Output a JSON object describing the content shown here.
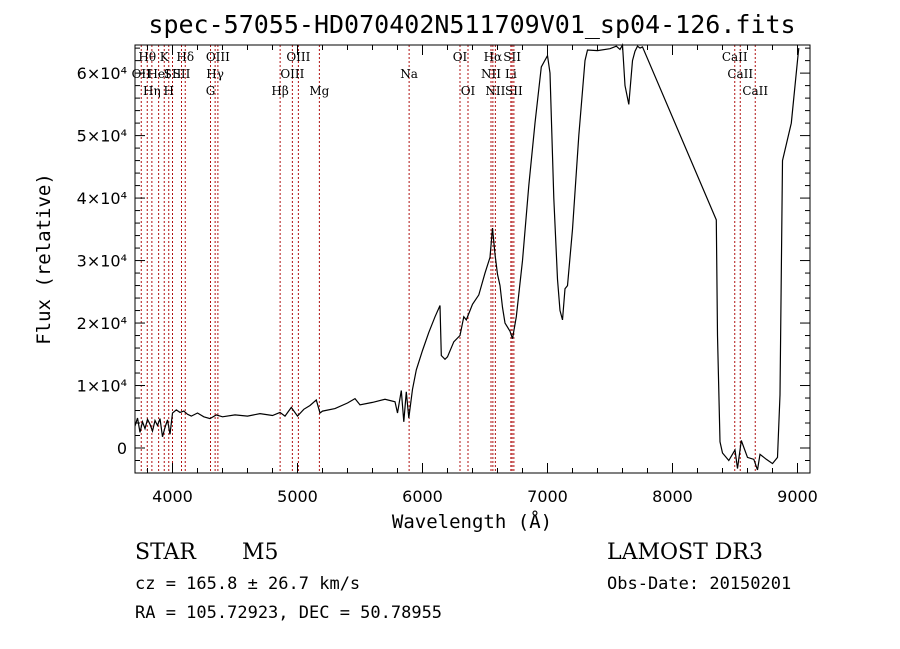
{
  "chart_data": {
    "type": "line",
    "title": "spec-57055-HD070402N511709V01_sp04-126.fits",
    "xlabel": "Wavelength (Å)",
    "ylabel": "Flux (relative)",
    "xlim": [
      3700,
      9100
    ],
    "ylim": [
      -4000,
      64500
    ],
    "x_ticks": [
      {
        "value": 4000,
        "label": "4000"
      },
      {
        "value": 5000,
        "label": "5000"
      },
      {
        "value": 6000,
        "label": "6000"
      },
      {
        "value": 7000,
        "label": "7000"
      },
      {
        "value": 8000,
        "label": "8000"
      },
      {
        "value": 9000,
        "label": "9000"
      }
    ],
    "y_ticks": [
      {
        "value": 0,
        "label": "0"
      },
      {
        "value": 10000,
        "label": "1×10⁴"
      },
      {
        "value": 20000,
        "label": "2×10⁴"
      },
      {
        "value": 30000,
        "label": "3×10⁴"
      },
      {
        "value": 40000,
        "label": "4×10⁴"
      },
      {
        "value": 50000,
        "label": "5×10⁴"
      },
      {
        "value": 60000,
        "label": "6×10⁴"
      }
    ],
    "grid": false,
    "series": [
      {
        "color": "#000000",
        "points": [
          [
            3700,
            3500
          ],
          [
            3720,
            4800
          ],
          [
            3740,
            2500
          ],
          [
            3760,
            4200
          ],
          [
            3780,
            3100
          ],
          [
            3800,
            4600
          ],
          [
            3820,
            3800
          ],
          [
            3840,
            2700
          ],
          [
            3860,
            4400
          ],
          [
            3880,
            3600
          ],
          [
            3900,
            4700
          ],
          [
            3920,
            1800
          ],
          [
            3940,
            3300
          ],
          [
            3960,
            4500
          ],
          [
            3980,
            2200
          ],
          [
            4000,
            5600
          ],
          [
            4030,
            6100
          ],
          [
            4060,
            5700
          ],
          [
            4090,
            5900
          ],
          [
            4120,
            5400
          ],
          [
            4150,
            5100
          ],
          [
            4200,
            5600
          ],
          [
            4250,
            5000
          ],
          [
            4300,
            4700
          ],
          [
            4350,
            5300
          ],
          [
            4400,
            5000
          ],
          [
            4500,
            5300
          ],
          [
            4600,
            5100
          ],
          [
            4700,
            5500
          ],
          [
            4800,
            5200
          ],
          [
            4860,
            5700
          ],
          [
            4900,
            5100
          ],
          [
            4950,
            6500
          ],
          [
            5000,
            5100
          ],
          [
            5050,
            6200
          ],
          [
            5100,
            6800
          ],
          [
            5150,
            7700
          ],
          [
            5180,
            5600
          ],
          [
            5200,
            5900
          ],
          [
            5300,
            6300
          ],
          [
            5400,
            7200
          ],
          [
            5460,
            7900
          ],
          [
            5500,
            6900
          ],
          [
            5600,
            7300
          ],
          [
            5700,
            7800
          ],
          [
            5780,
            7400
          ],
          [
            5800,
            5600
          ],
          [
            5830,
            9200
          ],
          [
            5850,
            4200
          ],
          [
            5870,
            9000
          ],
          [
            5890,
            4800
          ],
          [
            5920,
            9400
          ],
          [
            5950,
            12500
          ],
          [
            6000,
            15600
          ],
          [
            6050,
            18500
          ],
          [
            6100,
            21000
          ],
          [
            6140,
            22800
          ],
          [
            6150,
            14800
          ],
          [
            6180,
            14200
          ],
          [
            6200,
            14600
          ],
          [
            6250,
            17000
          ],
          [
            6300,
            18000
          ],
          [
            6330,
            21000
          ],
          [
            6350,
            20500
          ],
          [
            6400,
            23000
          ],
          [
            6450,
            24500
          ],
          [
            6500,
            28000
          ],
          [
            6540,
            30500
          ],
          [
            6560,
            35200
          ],
          [
            6580,
            31000
          ],
          [
            6600,
            27800
          ],
          [
            6620,
            26000
          ],
          [
            6640,
            22500
          ],
          [
            6660,
            20000
          ],
          [
            6700,
            18700
          ],
          [
            6720,
            17500
          ],
          [
            6750,
            21000
          ],
          [
            6800,
            30000
          ],
          [
            6850,
            42000
          ],
          [
            6900,
            52000
          ],
          [
            6950,
            61000
          ],
          [
            7000,
            62800
          ],
          [
            7020,
            60000
          ],
          [
            7050,
            40000
          ],
          [
            7080,
            27000
          ],
          [
            7100,
            22000
          ],
          [
            7120,
            20500
          ],
          [
            7140,
            25500
          ],
          [
            7160,
            26000
          ],
          [
            7200,
            35000
          ],
          [
            7250,
            50000
          ],
          [
            7300,
            62000
          ],
          [
            7320,
            63700
          ],
          [
            7400,
            63600
          ],
          [
            7500,
            63900
          ],
          [
            7550,
            64300
          ],
          [
            7580,
            63800
          ],
          [
            7600,
            64500
          ],
          [
            7620,
            58000
          ],
          [
            7650,
            55000
          ],
          [
            7680,
            62000
          ],
          [
            7700,
            63500
          ],
          [
            7720,
            64300
          ],
          [
            7740,
            64000
          ],
          [
            7760,
            64200
          ],
          [
            8350,
            36500
          ],
          [
            8360,
            18000
          ],
          [
            8380,
            1000
          ],
          [
            8400,
            -800
          ],
          [
            8450,
            -2000
          ],
          [
            8500,
            -300
          ],
          [
            8520,
            -3300
          ],
          [
            8550,
            1200
          ],
          [
            8600,
            -1500
          ],
          [
            8650,
            -1800
          ],
          [
            8680,
            -3500
          ],
          [
            8700,
            -1000
          ],
          [
            8750,
            -1800
          ],
          [
            8800,
            -2500
          ],
          [
            8840,
            -1500
          ],
          [
            8860,
            8500
          ],
          [
            8880,
            46000
          ],
          [
            8950,
            52000
          ],
          [
            9000,
            62000
          ],
          [
            9010,
            64000
          ]
        ]
      }
    ],
    "lines": [
      {
        "x": 3750,
        "label": "OII",
        "row": 1
      },
      {
        "x": 3798,
        "label": "Hθ",
        "row": 0
      },
      {
        "x": 3835,
        "label": "Hη",
        "row": 2
      },
      {
        "x": 3889,
        "label": "HeI",
        "row": 1
      },
      {
        "x": 3934,
        "label": "K",
        "row": 0
      },
      {
        "x": 3970,
        "label": "H",
        "row": 2
      },
      {
        "x": 4000,
        "label": "SII",
        "row": 1
      },
      {
        "x": 4102,
        "label": "Hδ",
        "row": 0
      },
      {
        "x": 4072,
        "label": "SII",
        "row": 1
      },
      {
        "x": 4304,
        "label": "G",
        "row": 2
      },
      {
        "x": 4341,
        "label": "Hγ",
        "row": 1
      },
      {
        "x": 4363,
        "label": "OIII",
        "row": 0
      },
      {
        "x": 4861,
        "label": "Hβ",
        "row": 2
      },
      {
        "x": 4959,
        "label": "OIII",
        "row": 1
      },
      {
        "x": 5007,
        "label": "OIII",
        "row": 0
      },
      {
        "x": 5175,
        "label": "Mg",
        "row": 2
      },
      {
        "x": 5893,
        "label": "Na",
        "row": 1
      },
      {
        "x": 6300,
        "label": "OI",
        "row": 0
      },
      {
        "x": 6364,
        "label": "OI",
        "row": 2
      },
      {
        "x": 6548,
        "label": "NII",
        "row": 1
      },
      {
        "x": 6563,
        "label": "Hα",
        "row": 0
      },
      {
        "x": 6583,
        "label": "NII",
        "row": 2
      },
      {
        "x": 6707,
        "label": "Li",
        "row": 1
      },
      {
        "x": 6717,
        "label": "SII",
        "row": 0
      },
      {
        "x": 6731,
        "label": "SII",
        "row": 2
      },
      {
        "x": 8498,
        "label": "CaII",
        "row": 0
      },
      {
        "x": 8542,
        "label": "CaII",
        "row": 1
      },
      {
        "x": 8662,
        "label": "CaII",
        "row": 2
      }
    ]
  },
  "info": {
    "object_class": "STAR",
    "subclass": "M5",
    "survey": "LAMOST DR3",
    "cz": "cz = 165.8 ± 26.7 km/s",
    "obs_date": "Obs-Date: 20150201",
    "coords": "RA = 105.72923, DEC =  50.78955"
  }
}
